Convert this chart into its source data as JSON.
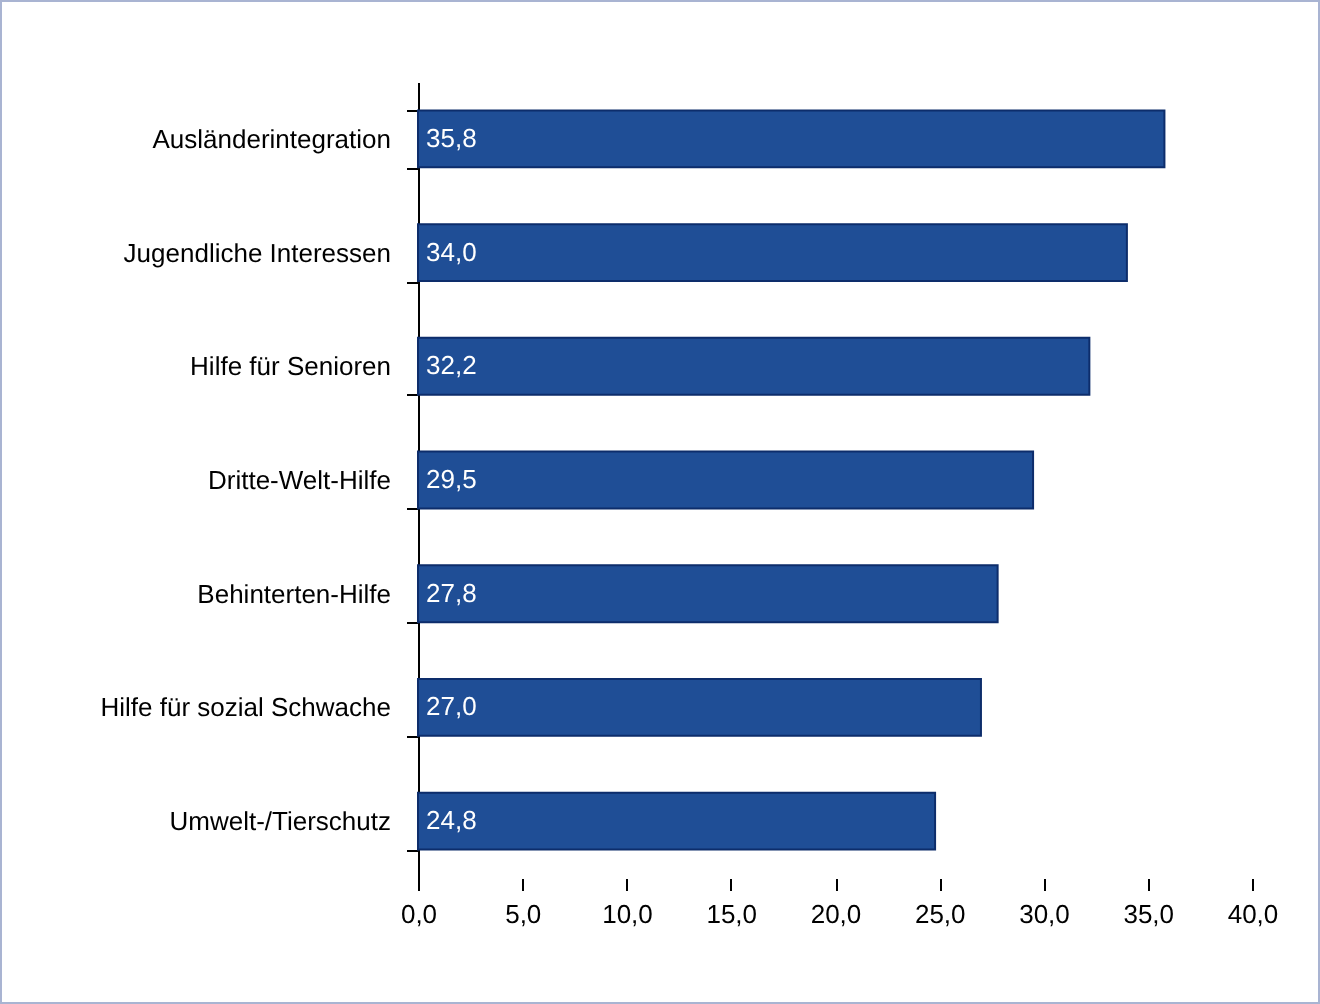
{
  "chart_data": {
    "type": "bar",
    "orientation": "horizontal",
    "categories": [
      "Ausländerintegration",
      "Jugendliche Interessen",
      "Hilfe für Senioren",
      "Dritte-Welt-Hilfe",
      "Behinterten-Hilfe",
      "Hilfe für sozial Schwache",
      "Umwelt-/Tierschutz"
    ],
    "values": [
      35.8,
      34.0,
      32.2,
      29.5,
      27.8,
      27.0,
      24.8
    ],
    "value_labels": [
      "35,8",
      "34,0",
      "32,2",
      "29,5",
      "27,8",
      "27,0",
      "24,8"
    ],
    "color": "#1f4e96",
    "xlim": [
      0,
      40
    ],
    "xticks": [
      {
        "value": 0,
        "label": "0,0"
      },
      {
        "value": 5,
        "label": "5,0"
      },
      {
        "value": 10,
        "label": "10,0"
      },
      {
        "value": 15,
        "label": "15,0"
      },
      {
        "value": 20,
        "label": "20,0"
      },
      {
        "value": 25,
        "label": "25,0"
      },
      {
        "value": 30,
        "label": "30,0"
      },
      {
        "value": 35,
        "label": "35,0"
      },
      {
        "value": 40,
        "label": "40,0"
      }
    ],
    "grid": false
  }
}
